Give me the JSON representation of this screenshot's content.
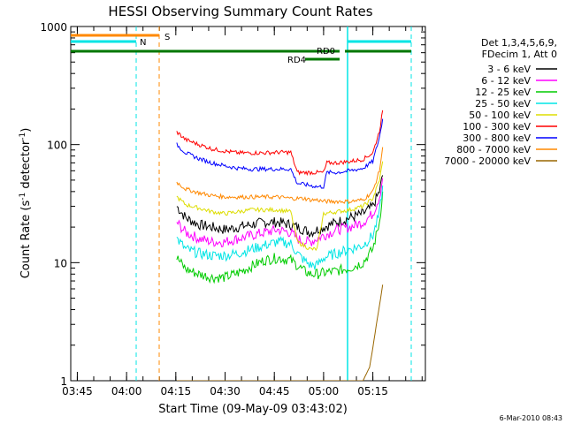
{
  "chart_data": {
    "type": "line",
    "title": "HESSI Observing Summary Count Rates",
    "xlabel": "Start Time (09-May-09 03:43:02)",
    "ylabel_main": "Count Rate (s",
    "ylabel_sup1": "-1",
    "ylabel_mid": " detector",
    "ylabel_sup2": "-1",
    "ylabel_end": ")",
    "yscale": "log",
    "ylim": [
      1,
      1000
    ],
    "xlim_minutes": [
      223.0,
      331.0
    ],
    "x_ticks": [
      {
        "label": "03:45",
        "minute": 225
      },
      {
        "label": "04:00",
        "minute": 240
      },
      {
        "label": "04:15",
        "minute": 255
      },
      {
        "label": "04:30",
        "minute": 270
      },
      {
        "label": "04:45",
        "minute": 285
      },
      {
        "label": "05:00",
        "minute": 300
      },
      {
        "label": "05:15",
        "minute": 315
      }
    ],
    "y_ticks": [
      {
        "label": "1",
        "value": 1
      },
      {
        "label": "10",
        "value": 10
      },
      {
        "label": "100",
        "value": 100
      },
      {
        "label": "1000",
        "value": 1000
      }
    ],
    "legend_position": "top-right",
    "legend_header": [
      "Det 1,3,4,5,6,9,",
      "FDecim 1, Att 0"
    ],
    "series": [
      {
        "name": "3 - 6 keV",
        "color": "#000000",
        "x": [
          255.3,
          258,
          262,
          266,
          270,
          274,
          278,
          282,
          286,
          290,
          292,
          294,
          296,
          298,
          300,
          304,
          308,
          312,
          315,
          317,
          318
        ],
        "y": [
          30,
          24,
          21,
          20,
          19,
          20,
          21,
          22,
          22,
          21,
          20,
          19,
          18,
          19,
          20,
          22,
          24,
          26,
          30,
          40,
          55
        ]
      },
      {
        "name": "6 - 12 keV",
        "color": "#ff00ff",
        "x": [
          255.3,
          258,
          262,
          266,
          270,
          274,
          278,
          282,
          286,
          290,
          292,
          294,
          296,
          298,
          300,
          304,
          308,
          312,
          315,
          317,
          318
        ],
        "y": [
          22,
          18,
          16,
          15,
          15,
          16,
          17,
          18,
          19,
          18,
          16,
          15,
          15,
          16,
          17,
          19,
          20,
          22,
          26,
          36,
          52
        ]
      },
      {
        "name": "12 - 25 keV",
        "color": "#00cc00",
        "x": [
          255.3,
          258,
          262,
          266,
          270,
          274,
          278,
          282,
          286,
          290,
          292,
          294,
          296,
          298,
          300,
          304,
          308,
          312,
          315,
          317,
          318
        ],
        "y": [
          11,
          8.8,
          8,
          7.5,
          7.5,
          8.2,
          9.3,
          10.5,
          11,
          10.5,
          9.5,
          8.5,
          8,
          8,
          8.2,
          8.5,
          9,
          10,
          13,
          22,
          40
        ]
      },
      {
        "name": "25 - 50 keV",
        "color": "#00e5e5",
        "x": [
          255.3,
          258,
          262,
          266,
          270,
          274,
          278,
          282,
          286,
          290,
          292,
          294,
          296,
          298,
          300,
          304,
          308,
          312,
          315,
          317,
          318
        ],
        "y": [
          16,
          13,
          12,
          11.5,
          11.5,
          12,
          13,
          14,
          15,
          14.5,
          12,
          10.5,
          9.5,
          9.5,
          11,
          12,
          13,
          14,
          17,
          26,
          45
        ]
      },
      {
        "name": "50 - 100 keV",
        "color": "#dddd00",
        "x": [
          255.3,
          258,
          262,
          266,
          270,
          274,
          278,
          282,
          286,
          290,
          292,
          294,
          296,
          298,
          300,
          304,
          308,
          312,
          315,
          317,
          318
        ],
        "y": [
          36,
          31,
          29,
          27,
          26,
          27,
          28,
          28,
          28,
          27,
          15,
          14,
          13,
          13,
          26,
          27,
          28,
          30,
          35,
          50,
          72
        ]
      },
      {
        "name": "100 - 300 keV",
        "color": "#ff0000",
        "x": [
          255.3,
          258,
          262,
          266,
          270,
          274,
          278,
          282,
          286,
          290,
          292,
          294,
          296,
          298,
          300,
          301,
          304,
          308,
          312,
          315,
          317,
          318
        ],
        "y": [
          128,
          110,
          100,
          92,
          88,
          85,
          85,
          85,
          86,
          86,
          58,
          58,
          58,
          58,
          58,
          70,
          70,
          72,
          75,
          85,
          130,
          195
        ]
      },
      {
        "name": "300 - 800 keV",
        "color": "#0000ff",
        "x": [
          255.3,
          258,
          262,
          266,
          270,
          274,
          278,
          282,
          286,
          290,
          292,
          294,
          296,
          298,
          300,
          301,
          304,
          308,
          312,
          315,
          317,
          318
        ],
        "y": [
          100,
          85,
          76,
          70,
          66,
          63,
          62,
          62,
          62,
          62,
          47,
          46,
          45,
          44,
          44,
          58,
          58,
          60,
          63,
          72,
          115,
          165
        ]
      },
      {
        "name": "800 - 7000 keV",
        "color": "#ff8800",
        "x": [
          255.3,
          258,
          262,
          266,
          270,
          274,
          278,
          282,
          286,
          290,
          292,
          294,
          296,
          298,
          300,
          304,
          308,
          312,
          315,
          317,
          318
        ],
        "y": [
          48,
          42,
          39,
          37,
          36,
          36,
          36,
          36,
          36,
          35,
          35,
          35,
          34,
          34,
          33,
          33,
          33,
          34,
          40,
          60,
          95
        ]
      },
      {
        "name": "7000 - 20000 keV",
        "color": "#996600",
        "x": [
          255.3,
          258,
          262,
          266,
          270,
          274,
          278,
          282,
          286,
          290,
          294,
          298,
          302,
          306,
          310,
          312,
          314,
          315,
          316,
          317,
          318
        ],
        "y": [
          1,
          1,
          1,
          1,
          1,
          1,
          1,
          1,
          1,
          1,
          1,
          1,
          1,
          1,
          1,
          1,
          1.3,
          1.9,
          2.9,
          4.3,
          6.5
        ]
      }
    ],
    "annotations": {
      "S": {
        "label": "S",
        "color": "#ff8800"
      },
      "N": {
        "label": "N",
        "color": "#00e5e5"
      },
      "RD0": {
        "label": "RD0",
        "color": "#007700"
      },
      "RD4": {
        "label": "RD4",
        "color": "#007700"
      }
    },
    "footer_date": "6-Mar-2010 08:43"
  }
}
